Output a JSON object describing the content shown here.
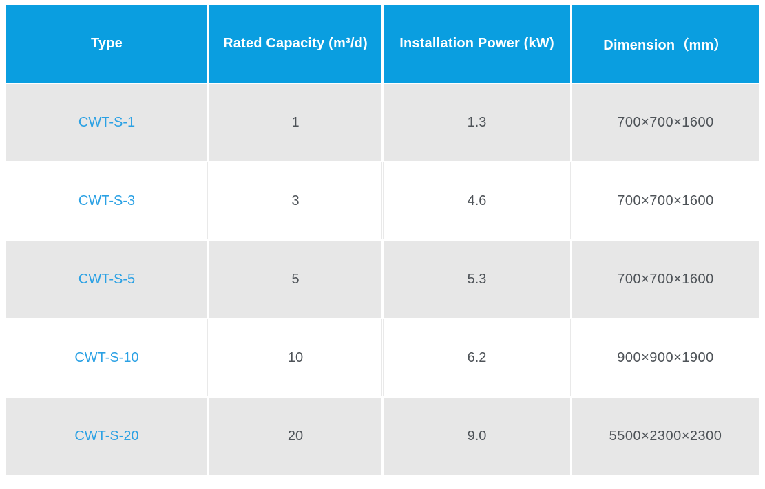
{
  "table": {
    "columns": [
      {
        "label": "Type"
      },
      {
        "label": "Rated Capacity (m³/d)"
      },
      {
        "label": "Installation Power (kW)"
      },
      {
        "label": "Dimension（mm）"
      }
    ],
    "rows": [
      {
        "type": "CWT-S-1",
        "capacity": "1",
        "power": "1.3",
        "dimension": "700×700×1600"
      },
      {
        "type": "CWT-S-3",
        "capacity": "3",
        "power": "4.6",
        "dimension": "700×700×1600"
      },
      {
        "type": "CWT-S-5",
        "capacity": "5",
        "power": "5.3",
        "dimension": "700×700×1600"
      },
      {
        "type": "CWT-S-10",
        "capacity": "10",
        "power": "6.2",
        "dimension": "900×900×1900"
      },
      {
        "type": "CWT-S-20",
        "capacity": "20",
        "power": "9.0",
        "dimension": "5500×2300×2300"
      }
    ],
    "colors": {
      "header_background": "#0A9EE0",
      "type_link_blue": "#2BA1E4",
      "row_gray": "#E7E7E7",
      "row_white": "#FFFFFF",
      "value_text": "#4E5358"
    }
  },
  "chart_data": {
    "type": "table",
    "title": "",
    "columns": [
      "Type",
      "Rated Capacity (m³/d)",
      "Installation Power (kW)",
      "Dimension（mm）"
    ],
    "rows": [
      [
        "CWT-S-1",
        "1",
        "1.3",
        "700×700×1600"
      ],
      [
        "CWT-S-3",
        "3",
        "4.6",
        "700×700×1600"
      ],
      [
        "CWT-S-5",
        "5",
        "5.3",
        "700×700×1600"
      ],
      [
        "CWT-S-10",
        "10",
        "6.2",
        "900×900×1900"
      ],
      [
        "CWT-S-20",
        "20",
        "9.0",
        "5500×2300×2300"
      ]
    ],
    "layout_hints": {
      "header_style": "blue background, white bold text",
      "row_striping": "gray / white alternating starting gray",
      "alignment": "all cells centered"
    }
  }
}
